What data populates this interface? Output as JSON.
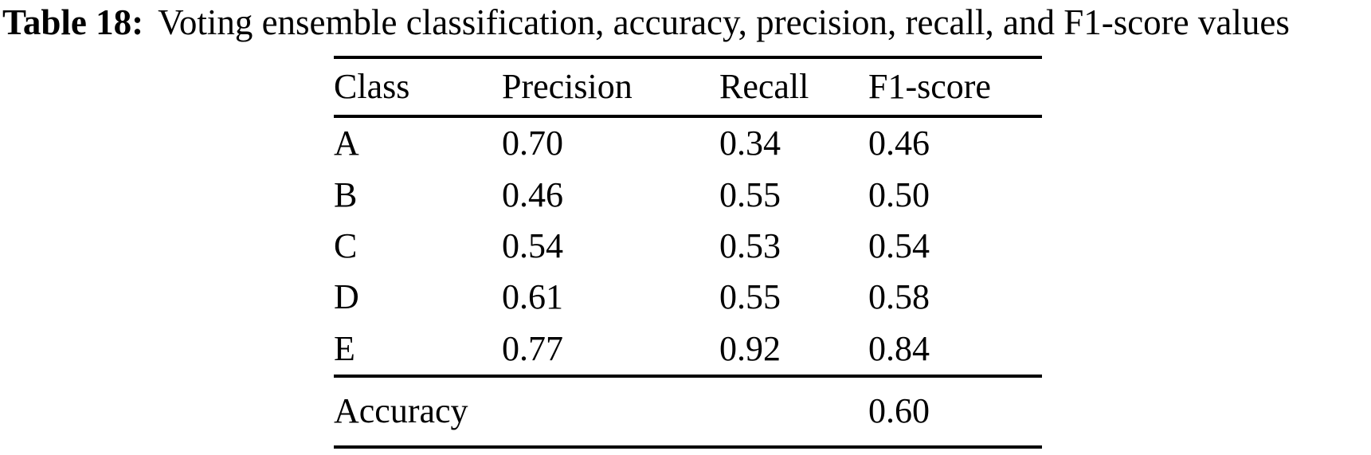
{
  "caption": {
    "label": "Table 18:",
    "text": "Voting ensemble classification, accuracy, precision, recall, and F1-score values"
  },
  "table": {
    "columns": [
      "Class",
      "Precision",
      "Recall",
      "F1-score"
    ],
    "rows": [
      [
        "A",
        "0.70",
        "0.34",
        "0.46"
      ],
      [
        "B",
        "0.46",
        "0.55",
        "0.50"
      ],
      [
        "C",
        "0.54",
        "0.53",
        "0.54"
      ],
      [
        "D",
        "0.61",
        "0.55",
        "0.58"
      ],
      [
        "E",
        "0.77",
        "0.92",
        "0.84"
      ]
    ],
    "footer": {
      "label": "Accuracy",
      "value": "0.60"
    }
  },
  "colors": {
    "text": "#000000",
    "background": "#ffffff",
    "rule": "#000000"
  },
  "chart_data": {
    "type": "table",
    "title": "Table 18: Voting ensemble classification, accuracy, precision, recall, and F1-score values",
    "columns": [
      "Class",
      "Precision",
      "Recall",
      "F1-score"
    ],
    "rows": [
      [
        "A",
        0.7,
        0.34,
        0.46
      ],
      [
        "B",
        0.46,
        0.55,
        0.5
      ],
      [
        "C",
        0.54,
        0.53,
        0.54
      ],
      [
        "D",
        0.61,
        0.55,
        0.58
      ],
      [
        "E",
        0.77,
        0.92,
        0.84
      ]
    ],
    "accuracy": 0.6
  }
}
